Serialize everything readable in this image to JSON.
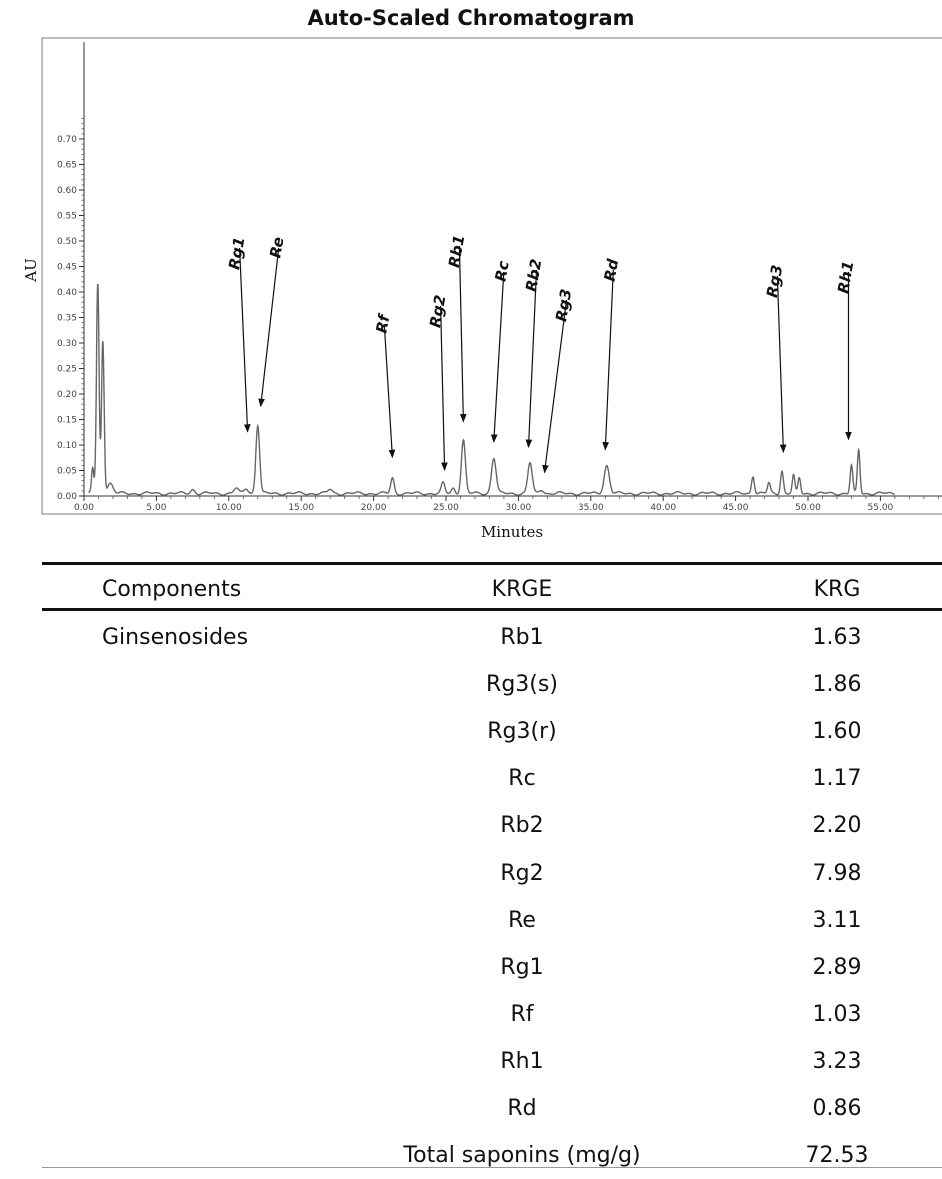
{
  "chart_data": {
    "type": "line",
    "title": "Auto-Scaled Chromatogram",
    "xlabel": "Minutes",
    "ylabel": "AU",
    "xlim": [
      0,
      56
    ],
    "ylim": [
      0,
      0.72
    ],
    "x_ticks": [
      "0.00",
      "5.00",
      "10.00",
      "15.00",
      "20.00",
      "25.00",
      "30.00",
      "35.00",
      "40.00",
      "45.00",
      "50.00",
      "55.00"
    ],
    "y_ticks": [
      "0.00",
      "0.05",
      "0.10",
      "0.15",
      "0.20",
      "0.25",
      "0.30",
      "0.35",
      "0.40",
      "0.45",
      "0.50",
      "0.55",
      "0.60",
      "0.65",
      "0.70"
    ],
    "grid": false,
    "baseline": 0.005,
    "peaks": [
      {
        "x": 0.6,
        "y": 0.05,
        "w": 0.08
      },
      {
        "x": 0.95,
        "y": 0.41,
        "w": 0.09
      },
      {
        "x": 1.3,
        "y": 0.3,
        "w": 0.09
      },
      {
        "x": 1.8,
        "y": 0.02,
        "w": 0.2
      },
      {
        "x": 7.5,
        "y": 0.008,
        "w": 0.15
      },
      {
        "x": 10.5,
        "y": 0.01,
        "w": 0.15
      },
      {
        "x": 11.2,
        "y": 0.01,
        "w": 0.15
      },
      {
        "x": 12.0,
        "y": 0.135,
        "w": 0.13
      },
      {
        "x": 17.0,
        "y": 0.008,
        "w": 0.15
      },
      {
        "x": 21.3,
        "y": 0.03,
        "w": 0.12
      },
      {
        "x": 24.8,
        "y": 0.02,
        "w": 0.12
      },
      {
        "x": 25.5,
        "y": 0.01,
        "w": 0.12
      },
      {
        "x": 26.2,
        "y": 0.105,
        "w": 0.14
      },
      {
        "x": 28.3,
        "y": 0.07,
        "w": 0.16
      },
      {
        "x": 30.8,
        "y": 0.06,
        "w": 0.15
      },
      {
        "x": 31.6,
        "y": 0.008,
        "w": 0.15
      },
      {
        "x": 36.1,
        "y": 0.055,
        "w": 0.18
      },
      {
        "x": 46.2,
        "y": 0.035,
        "w": 0.1
      },
      {
        "x": 47.3,
        "y": 0.02,
        "w": 0.1
      },
      {
        "x": 48.2,
        "y": 0.045,
        "w": 0.1
      },
      {
        "x": 49.0,
        "y": 0.035,
        "w": 0.09
      },
      {
        "x": 49.4,
        "y": 0.03,
        "w": 0.09
      },
      {
        "x": 53.0,
        "y": 0.055,
        "w": 0.09
      },
      {
        "x": 53.5,
        "y": 0.085,
        "w": 0.09
      }
    ],
    "annotations": [
      {
        "label": "Rg1",
        "x": 11.3,
        "y": 0.12
      },
      {
        "label": "Re",
        "x": 12.2,
        "y": 0.17
      },
      {
        "label": "Rf",
        "x": 21.3,
        "y": 0.07
      },
      {
        "label": "Rg2",
        "x": 24.9,
        "y": 0.045
      },
      {
        "label": "Rb1",
        "x": 26.2,
        "y": 0.14
      },
      {
        "label": "Rc",
        "x": 28.3,
        "y": 0.1
      },
      {
        "label": "Rb2",
        "x": 30.7,
        "y": 0.09
      },
      {
        "label": "Rg3",
        "x": 31.8,
        "y": 0.04
      },
      {
        "label": "Rd",
        "x": 36.0,
        "y": 0.085
      },
      {
        "label": "Rg3",
        "x": 48.3,
        "y": 0.08
      },
      {
        "label": "Rh1",
        "x": 52.8,
        "y": 0.105
      }
    ]
  },
  "table": {
    "headers": [
      "Components",
      "KRGE",
      "KRG"
    ],
    "group_label": "Ginsenosides",
    "rows": [
      {
        "krge": "Rb1",
        "krg": "1.63"
      },
      {
        "krge": "Rg3(s)",
        "krg": "1.86"
      },
      {
        "krge": "Rg3(r)",
        "krg": "1.60"
      },
      {
        "krge": "Rc",
        "krg": "1.17"
      },
      {
        "krge": "Rb2",
        "krg": "2.20"
      },
      {
        "krge": "Rg2",
        "krg": "7.98"
      },
      {
        "krge": "Re",
        "krg": "3.11"
      },
      {
        "krge": "Rg1",
        "krg": "2.89"
      },
      {
        "krge": "Rf",
        "krg": "1.03"
      },
      {
        "krge": "Rh1",
        "krg": "3.23"
      },
      {
        "krge": "Rd",
        "krg": "0.86"
      },
      {
        "krge": "Total saponins (mg/g)",
        "krg": "72.53"
      }
    ]
  }
}
